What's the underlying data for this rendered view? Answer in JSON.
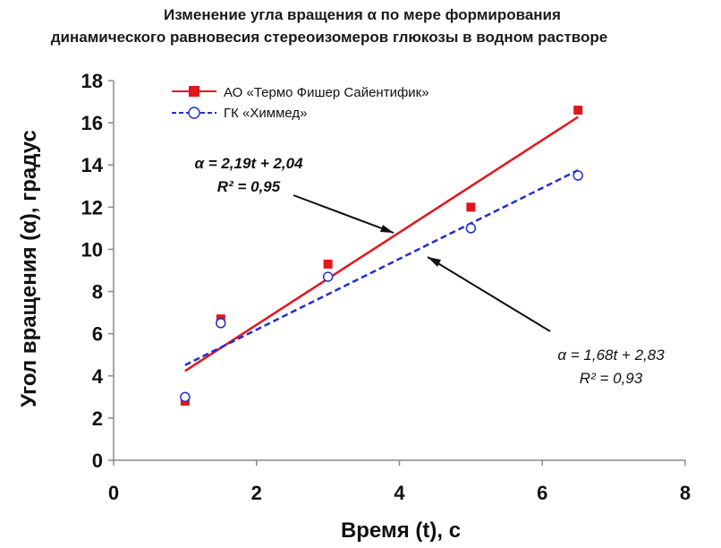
{
  "chart_data": {
    "type": "scatter",
    "title_line1": "Изменение угла вращения α по мере формирования",
    "title_line2": "динамического равновесия стереоизомеров глюкозы в водном растворе",
    "xlabel": "Время (t), с",
    "ylabel": "Угол вращения (α), градус",
    "xlim": [
      0,
      8
    ],
    "ylim": [
      0,
      18
    ],
    "x_ticks": [
      0,
      2,
      4,
      6,
      8
    ],
    "y_ticks": [
      0,
      2,
      4,
      6,
      8,
      10,
      12,
      14,
      16,
      18
    ],
    "grid": false,
    "legend_position": "top-left",
    "series": [
      {
        "name": "АО «Термо Фишер Сайентифик»",
        "marker": "square",
        "color": "#e3161c",
        "line_style": "solid",
        "x": [
          1,
          1.5,
          3,
          5,
          6.5
        ],
        "y": [
          2.8,
          6.7,
          9.3,
          12.0,
          16.6
        ],
        "fit": {
          "slope": 2.19,
          "intercept": 2.04,
          "x_range": [
            1,
            6.5
          ]
        },
        "equation": "α = 2,19t + 2,04",
        "r2": "R² = 0,95"
      },
      {
        "name": "ГК «Химмед»",
        "marker": "circle",
        "color": "#1f2fcf",
        "line_style": "dashed",
        "x": [
          1,
          1.5,
          3,
          5,
          6.5
        ],
        "y": [
          3.0,
          6.5,
          8.7,
          11.0,
          13.5
        ],
        "fit": {
          "slope": 1.68,
          "intercept": 2.83,
          "x_range": [
            1,
            6.5
          ]
        },
        "equation": "α = 1,68t + 2,83",
        "r2": "R² = 0,93"
      }
    ]
  }
}
